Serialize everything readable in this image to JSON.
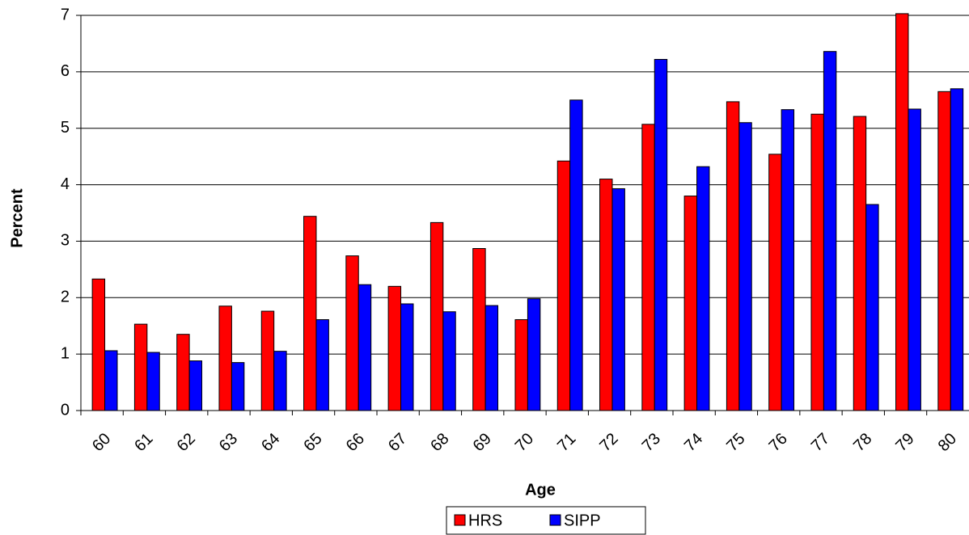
{
  "chart_data": {
    "type": "bar",
    "x_label": "Age",
    "y_label": "Percent",
    "categories": [
      "60",
      "61",
      "62",
      "63",
      "64",
      "65",
      "66",
      "67",
      "68",
      "69",
      "70",
      "71",
      "72",
      "73",
      "74",
      "75",
      "76",
      "77",
      "78",
      "79",
      "80"
    ],
    "series": [
      {
        "name": "HRS",
        "color": "#ff0000",
        "values": [
          2.33,
          1.53,
          1.35,
          1.85,
          1.76,
          3.44,
          2.74,
          2.2,
          3.33,
          2.87,
          1.61,
          4.42,
          4.1,
          5.07,
          3.8,
          5.47,
          4.54,
          5.25,
          5.21,
          7.03,
          5.65
        ]
      },
      {
        "name": "SIPP",
        "color": "#0000ff",
        "values": [
          1.06,
          1.03,
          0.88,
          0.85,
          1.05,
          1.61,
          2.23,
          1.89,
          1.75,
          1.86,
          1.98,
          5.5,
          3.93,
          6.22,
          4.32,
          5.1,
          5.33,
          6.36,
          3.65,
          5.34,
          5.7
        ]
      }
    ],
    "ylim": [
      0,
      7
    ],
    "yticks": [
      0,
      1,
      2,
      3,
      4,
      5,
      6,
      7
    ],
    "grid": true,
    "legend": "bottom"
  }
}
